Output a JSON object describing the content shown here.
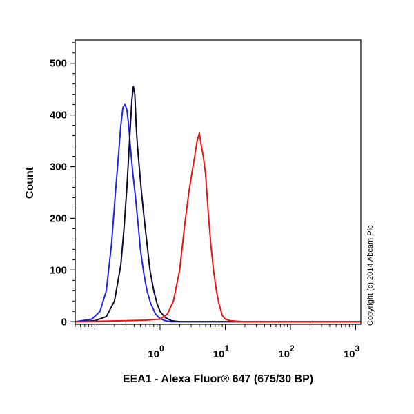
{
  "chart_data": {
    "type": "line",
    "xlabel": "EEA1 - Alexa Fluor® 647 (675/30 BP)",
    "ylabel": "Count",
    "x_scale": "log",
    "xlim": [
      0.05,
      1200
    ],
    "ylim": [
      -5,
      545
    ],
    "y_ticks": [
      0,
      100,
      200,
      300,
      400,
      500
    ],
    "x_tick_labels": [
      {
        "base": "10",
        "exp": "0",
        "value": 1
      },
      {
        "base": "10",
        "exp": "1",
        "value": 10
      },
      {
        "base": "10",
        "exp": "2",
        "value": 100
      },
      {
        "base": "10",
        "exp": "3",
        "value": 1000
      }
    ],
    "grid": false,
    "legend": "none",
    "copyright": "Copyright (c) 2014 Abcam Plc",
    "series": [
      {
        "color": "#2222ee",
        "x": [
          0.05,
          0.09,
          0.12,
          0.15,
          0.18,
          0.21,
          0.23,
          0.25,
          0.27,
          0.29,
          0.31,
          0.33,
          0.35,
          0.38,
          0.42,
          0.46,
          0.5,
          0.56,
          0.63,
          0.72,
          0.85,
          1.0,
          1.2,
          1.5,
          2.0,
          3.0,
          1200
        ],
        "y": [
          0,
          5,
          20,
          60,
          150,
          260,
          320,
          380,
          415,
          420,
          410,
          380,
          340,
          290,
          240,
          190,
          140,
          95,
          60,
          35,
          15,
          6,
          2,
          0,
          0,
          0,
          0
        ]
      },
      {
        "color": "#0b0b2e",
        "x": [
          0.05,
          0.1,
          0.15,
          0.2,
          0.25,
          0.28,
          0.31,
          0.34,
          0.37,
          0.39,
          0.41,
          0.43,
          0.45,
          0.48,
          0.52,
          0.57,
          0.62,
          0.7,
          0.8,
          0.9,
          1.0,
          1.2,
          1.5,
          2.0,
          3.0,
          1200
        ],
        "y": [
          0,
          2,
          10,
          40,
          110,
          180,
          260,
          350,
          430,
          455,
          440,
          380,
          340,
          300,
          250,
          200,
          160,
          100,
          60,
          35,
          20,
          8,
          2,
          0,
          0,
          0
        ]
      },
      {
        "color": "#ee1111",
        "x": [
          0.05,
          0.3,
          0.6,
          1.0,
          1.3,
          1.6,
          2.0,
          2.4,
          2.8,
          3.1,
          3.4,
          3.7,
          4.0,
          4.3,
          4.6,
          5.0,
          5.5,
          6.0,
          6.6,
          7.3,
          8.0,
          9.0,
          10.0,
          12.0,
          15.0,
          20.0,
          30.0,
          1200
        ],
        "y": [
          0,
          2,
          3,
          5,
          15,
          40,
          100,
          190,
          255,
          290,
          320,
          350,
          365,
          340,
          320,
          285,
          210,
          150,
          100,
          60,
          35,
          12,
          5,
          2,
          1,
          0,
          0,
          0
        ]
      }
    ]
  }
}
